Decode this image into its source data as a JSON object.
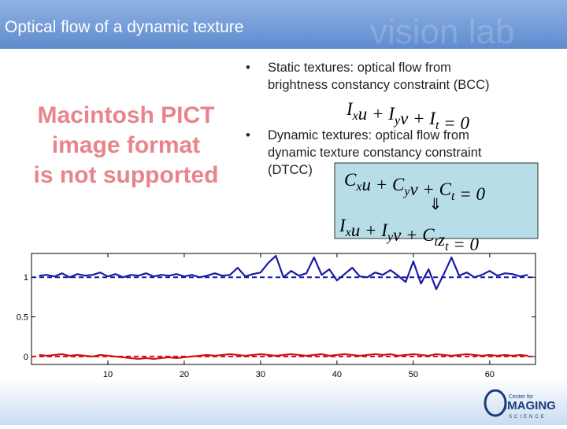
{
  "title": "Optical flow of a dynamic texture",
  "watermark": "vision lab",
  "placeholder": [
    "Macintosh PICT",
    "image format",
    "is not supported"
  ],
  "bullets": [
    {
      "lines": [
        "Static textures: optical flow from",
        "brightness constancy constraint (BCC)"
      ]
    },
    {
      "lines": [
        "Dynamic textures: optical flow from",
        "dynamic texture constancy constraint",
        "(DTCC)"
      ]
    }
  ],
  "bullet_symbol": "•",
  "equations": [
    {
      "segments": [
        {
          "base": "I",
          "sub": "x"
        },
        {
          "base": "u + I",
          "sub": "y"
        },
        {
          "base": "v + I",
          "sub": "t"
        },
        {
          "base": " = 0"
        }
      ]
    },
    {
      "segments": [
        {
          "base": "C",
          "sub": "x"
        },
        {
          "base": "u + C",
          "sub": "y"
        },
        {
          "base": "v + C",
          "sub": "t"
        },
        {
          "base": " = 0"
        }
      ]
    },
    {
      "segments": [
        {
          "base": "I",
          "sub": "x"
        },
        {
          "base": "u + I",
          "sub": "y"
        },
        {
          "base": "v + C",
          "sub": "t"
        },
        {
          "base": "z",
          "sub": "t"
        },
        {
          "base": " = 0"
        }
      ]
    }
  ],
  "implies": "⇓",
  "logo": {
    "top": "Center for",
    "main": "IMAGING",
    "bottom": "SCIENCE"
  },
  "chart_data": {
    "type": "line",
    "x": [
      1,
      2,
      3,
      4,
      5,
      6,
      7,
      8,
      9,
      10,
      11,
      12,
      13,
      14,
      15,
      16,
      17,
      18,
      19,
      20,
      21,
      22,
      23,
      24,
      25,
      26,
      27,
      28,
      29,
      30,
      31,
      32,
      33,
      34,
      35,
      36,
      37,
      38,
      39,
      40,
      41,
      42,
      43,
      44,
      45,
      46,
      47,
      48,
      49,
      50,
      51,
      52,
      53,
      54,
      55,
      56,
      57,
      58,
      59,
      60,
      61,
      62,
      63,
      64,
      65
    ],
    "series": [
      {
        "color": "#1a1aa6",
        "values": [
          1.02,
          1.03,
          1.01,
          1.05,
          1.0,
          1.04,
          1.02,
          1.03,
          1.06,
          1.01,
          1.04,
          1.0,
          1.03,
          1.02,
          1.05,
          1.01,
          1.03,
          1.02,
          1.04,
          1.01,
          1.03,
          1.0,
          1.02,
          1.05,
          1.02,
          1.03,
          1.12,
          1.01,
          1.04,
          1.06,
          1.18,
          1.27,
          1.0,
          1.08,
          1.02,
          1.05,
          1.25,
          1.03,
          1.1,
          0.96,
          1.04,
          1.12,
          1.01,
          1.0,
          1.06,
          1.03,
          1.09,
          1.02,
          0.94,
          1.2,
          0.92,
          1.1,
          0.85,
          1.04,
          1.25,
          1.02,
          1.06,
          1.0,
          1.03,
          1.08,
          1.02,
          1.05,
          1.04,
          1.01,
          1.03
        ]
      },
      {
        "color": "#d01010",
        "values": [
          0.02,
          0.01,
          0.02,
          0.03,
          0.01,
          0.02,
          0.01,
          0.0,
          0.02,
          0.01,
          0.0,
          -0.01,
          -0.02,
          -0.03,
          -0.02,
          -0.03,
          -0.02,
          -0.01,
          -0.02,
          -0.01,
          0.0,
          0.01,
          0.02,
          0.01,
          0.02,
          0.03,
          0.02,
          0.01,
          0.02,
          0.03,
          0.02,
          0.01,
          0.02,
          0.03,
          0.02,
          0.01,
          0.02,
          0.03,
          0.01,
          0.02,
          0.03,
          0.02,
          0.01,
          0.02,
          0.03,
          0.02,
          0.03,
          0.01,
          0.02,
          0.03,
          0.02,
          0.01,
          0.03,
          0.02,
          0.01,
          0.02,
          0.03,
          0.02,
          0.01,
          0.02,
          0.01,
          0.02,
          0.01,
          0.02,
          0.01
        ]
      }
    ],
    "hlines": [
      {
        "value": 1,
        "color": "#1a1aa6"
      },
      {
        "value": 0,
        "color": "#d01010"
      }
    ],
    "xlim": [
      0,
      66
    ],
    "ylim": [
      -0.1,
      1.3
    ],
    "xticks": [
      10,
      20,
      30,
      40,
      50,
      60
    ],
    "yticks": [
      0,
      0.5,
      1
    ]
  }
}
